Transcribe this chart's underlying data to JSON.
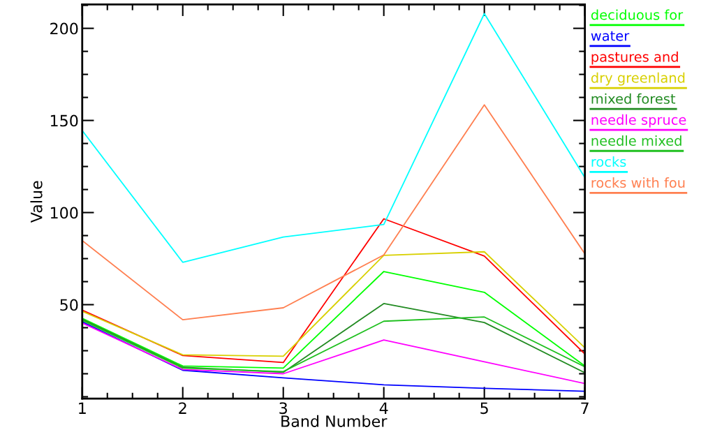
{
  "chart_data": {
    "type": "line",
    "xlabel": "Band Number",
    "ylabel": "Value",
    "categories": [
      "1",
      "2",
      "3",
      "4",
      "5",
      "7"
    ],
    "ylim": [
      -1,
      213
    ],
    "yticks": [
      50,
      100,
      150,
      200
    ],
    "grid": false,
    "legend": "right",
    "marker": "none",
    "line_style": "solid",
    "series": [
      {
        "name": "deciduous for",
        "color": "#00ff00",
        "values": [
          42.6,
          16.7,
          15.6,
          68,
          56.7,
          16.7
        ]
      },
      {
        "name": "water",
        "color": "#0000ff",
        "values": [
          40.7,
          14.4,
          10.3,
          6.5,
          4.6,
          3
        ]
      },
      {
        "name": "pastures and",
        "color": "#ff0000",
        "values": [
          47,
          22.4,
          18.6,
          96.6,
          76.4,
          23.2
        ]
      },
      {
        "name": "dry greenland",
        "color": "#d8d000",
        "values": [
          46.4,
          22.8,
          22,
          76.8,
          78.7,
          26.6
        ]
      },
      {
        "name": "mixed forest",
        "color": "#228b22",
        "values": [
          42,
          16,
          13.3,
          50.6,
          40.3,
          13
        ]
      },
      {
        "name": "needle spruce",
        "color": "#ff00ff",
        "values": [
          40,
          14.8,
          12.5,
          30.8,
          19,
          7.2
        ]
      },
      {
        "name": "needle mixed",
        "color": "#20c020",
        "values": [
          41.4,
          15.6,
          13.7,
          41,
          43.3,
          16.3
        ]
      },
      {
        "name": "rocks",
        "color": "#00ffff",
        "values": [
          144.5,
          73,
          86.7,
          93.5,
          208,
          119
        ]
      },
      {
        "name": "rocks with fou",
        "color": "#ff7f50",
        "values": [
          84.8,
          41.8,
          48.3,
          77,
          158.5,
          77.6
        ]
      }
    ]
  }
}
